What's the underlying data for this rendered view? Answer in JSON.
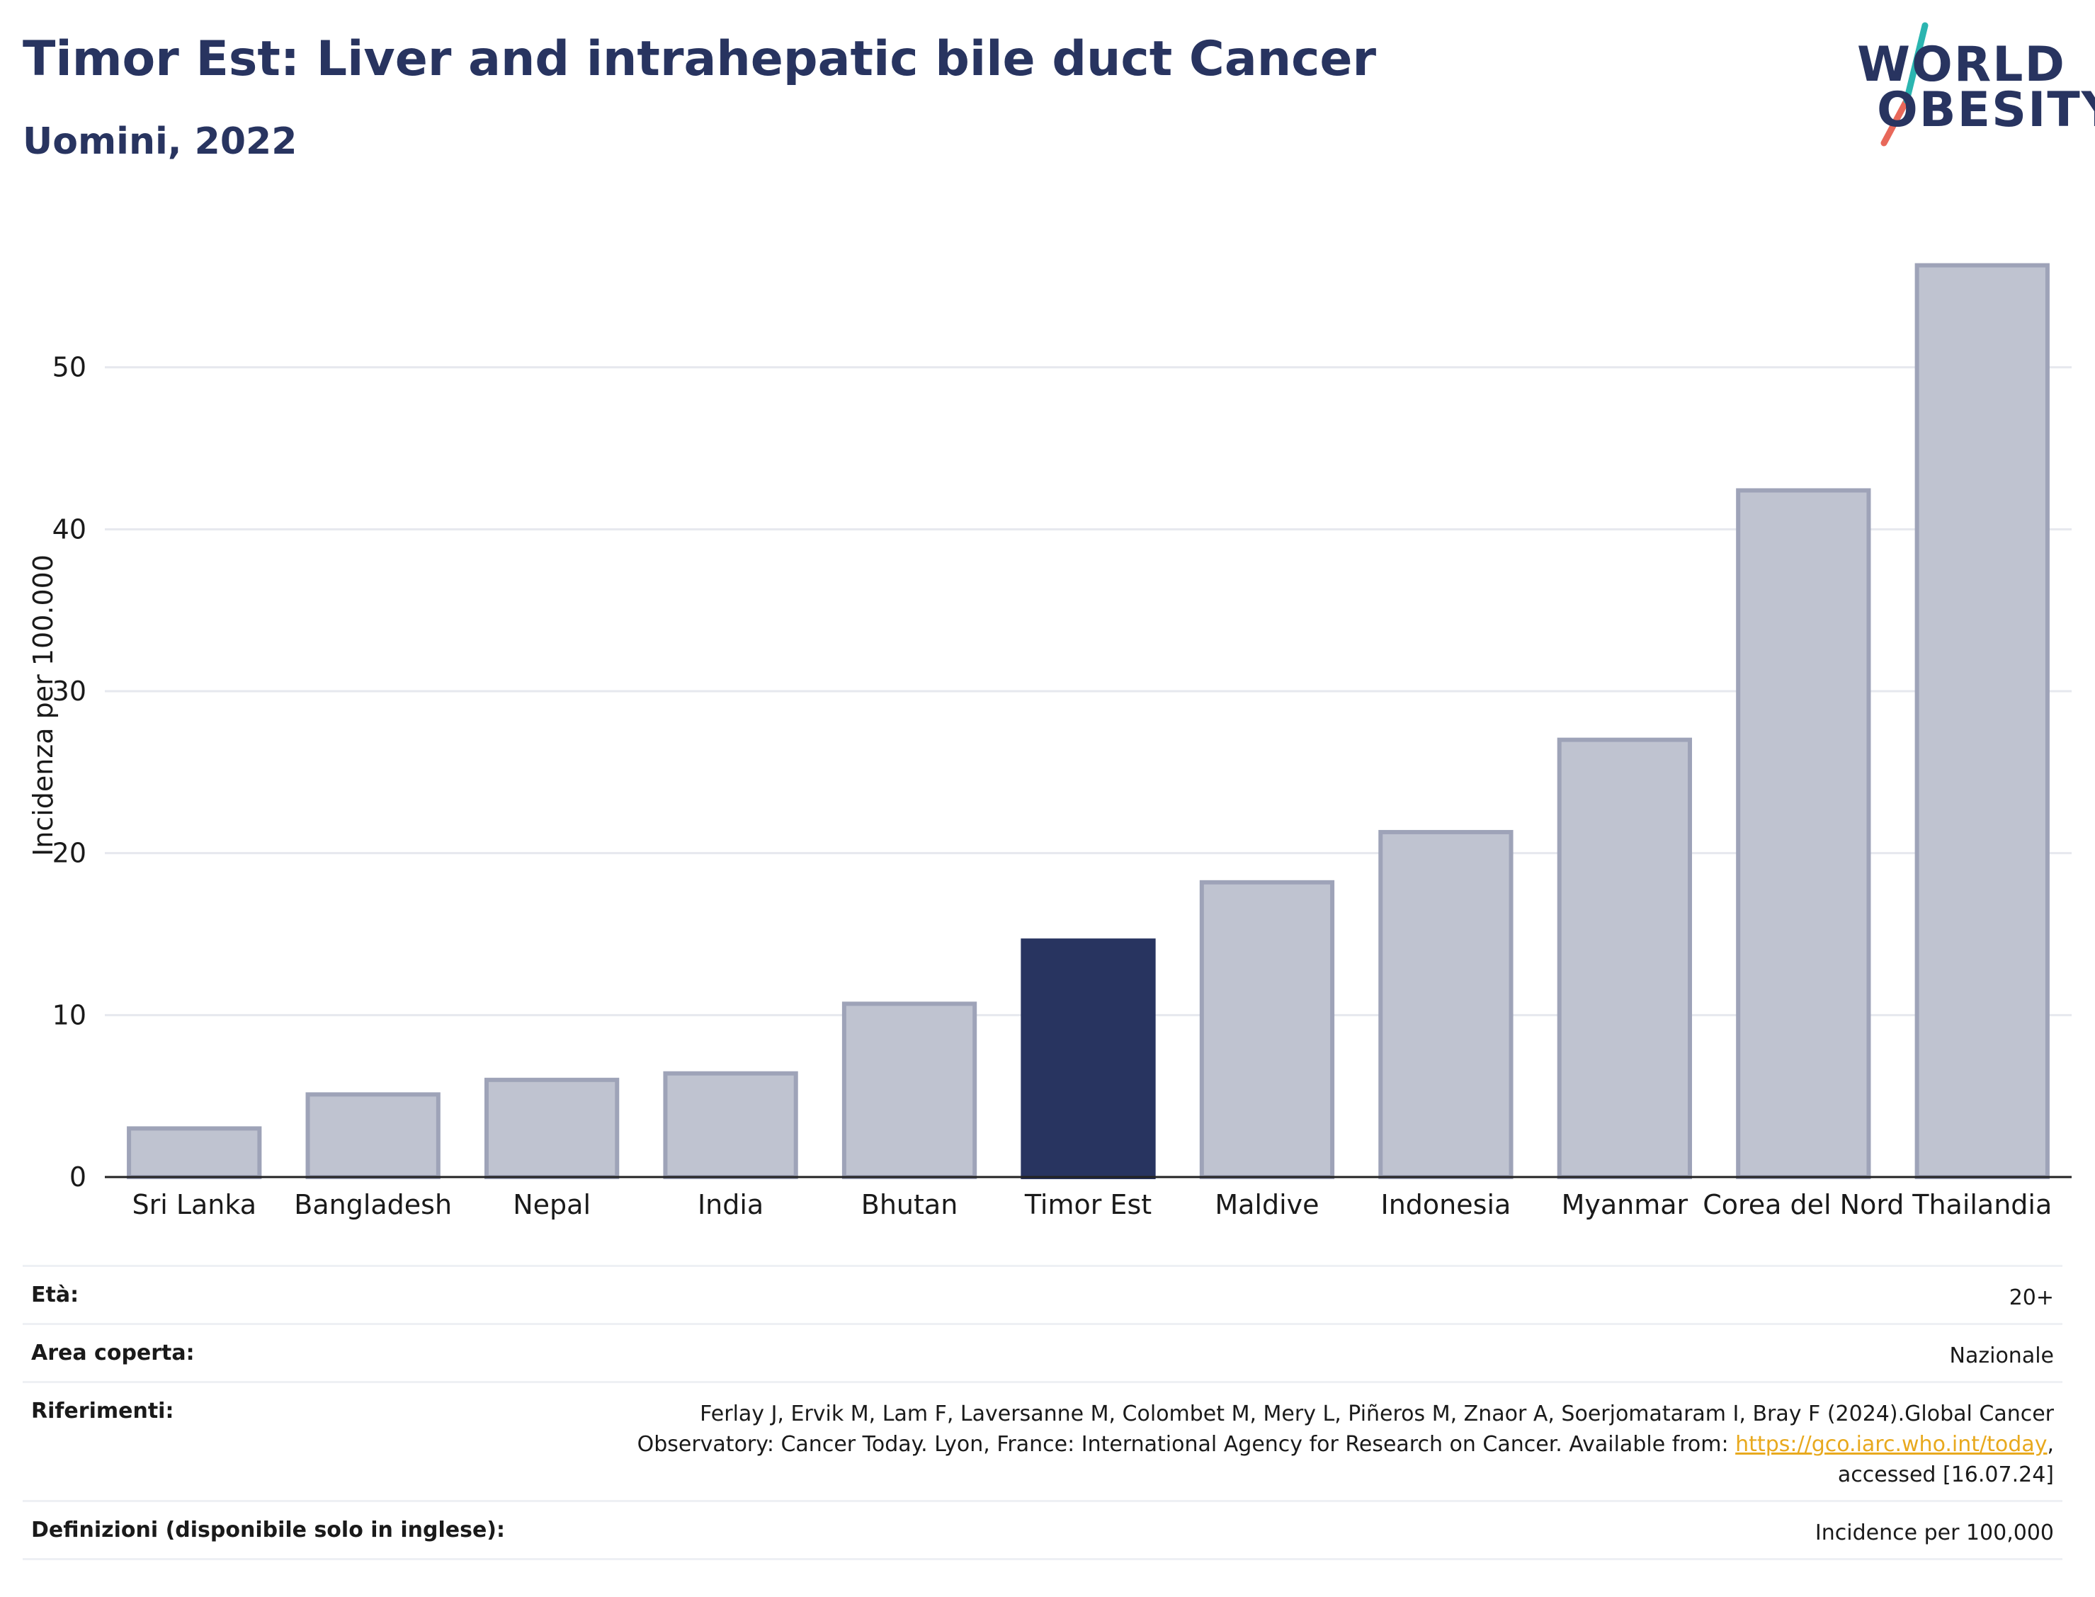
{
  "header": {
    "title": "Timor Est: Liver and intrahepatic bile duct Cancer",
    "subtitle": "Uomini, 2022"
  },
  "logo": {
    "line1": "WORLD",
    "line2": "OBESITY",
    "accent_colors": [
      "#2bb5b0",
      "#e8685a"
    ]
  },
  "colors": {
    "highlight": "#283460",
    "bar_fill": "#bfc3d0",
    "bar_stroke": "#9ea3b8",
    "grid": "#e6e8ee"
  },
  "chart_data": {
    "type": "bar",
    "categories": [
      "Sri Lanka",
      "Bangladesh",
      "Nepal",
      "India",
      "Bhutan",
      "Timor Est",
      "Maldive",
      "Indonesia",
      "Myanmar",
      "Corea del Nord",
      "Thailandia"
    ],
    "values": [
      3.0,
      5.1,
      6.0,
      6.4,
      10.7,
      14.6,
      18.2,
      21.3,
      27.0,
      42.4,
      56.3
    ],
    "highlight": "Timor Est",
    "ylabel": "Incidenza per 100.000",
    "xlabel": "",
    "ylim": [
      0,
      60
    ],
    "yticks": [
      0,
      10,
      20,
      30,
      40,
      50
    ],
    "grid": true
  },
  "meta": {
    "age_label": "Età:",
    "age_value": "20+",
    "area_label": "Area coperta:",
    "area_value": "Nazionale",
    "refs_label": "Riferimenti:",
    "refs_line1": "Ferlay J, Ervik M, Lam F, Laversanne M, Colombet M, Mery L, Piñeros M, Znaor A, Soerjomataram I, Bray F (2024).Global Cancer",
    "refs_line2": "Observatory: Cancer Today. Lyon, France: International Agency for Research on Cancer. Available from: ",
    "refs_link": "https://gco.iarc.who.int/today",
    "refs_link_suffix": ",",
    "refs_line3": "accessed [16.07.24]",
    "defs_label": "Definizioni (disponibile solo in inglese):",
    "defs_value": "Incidence per 100,000"
  }
}
